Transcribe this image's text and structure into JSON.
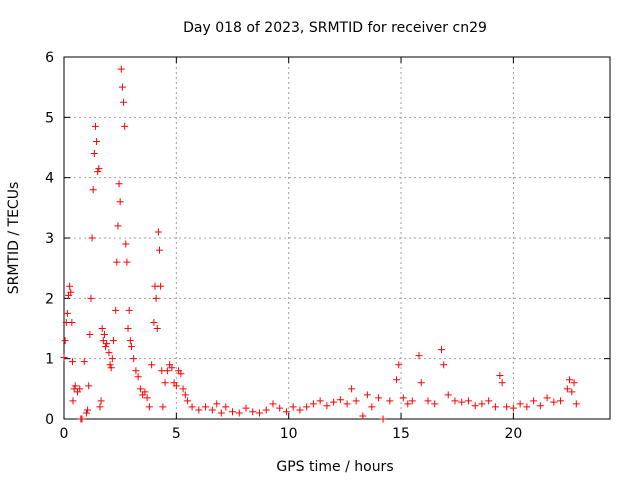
{
  "chart_data": {
    "type": "scatter",
    "title": "Day 018 of 2023, SRMTID for receiver cn29",
    "xlabel": "GPS time / hours",
    "ylabel": "SRMTID / TECUs",
    "xlim": [
      0,
      24.3
    ],
    "ylim": [
      0,
      6
    ],
    "xticks": [
      0,
      5,
      10,
      15,
      20
    ],
    "xtick_labels": [
      "0",
      "5",
      "10",
      "15",
      "20"
    ],
    "yticks": [
      0,
      1,
      2,
      3,
      4,
      5,
      6
    ],
    "ytick_labels": [
      "0",
      "1",
      "2",
      "3",
      "4",
      "5",
      "6"
    ],
    "grid": true,
    "marker": "+",
    "marker_color": "#ff0000",
    "series": [
      {
        "name": "SRMTID",
        "points": [
          [
            0.0,
            1.02
          ],
          [
            0.05,
            1.3
          ],
          [
            0.1,
            1.6
          ],
          [
            0.15,
            1.75
          ],
          [
            0.2,
            2.05
          ],
          [
            0.25,
            2.2
          ],
          [
            0.3,
            2.1
          ],
          [
            0.35,
            1.6
          ],
          [
            0.38,
            0.95
          ],
          [
            0.4,
            0.3
          ],
          [
            0.45,
            0.5
          ],
          [
            0.5,
            0.55
          ],
          [
            0.6,
            0.45
          ],
          [
            0.7,
            0.5
          ],
          [
            0.75,
            0.0
          ],
          [
            0.8,
            0.0
          ],
          [
            0.9,
            0.95
          ],
          [
            1.0,
            0.1
          ],
          [
            1.05,
            0.15
          ],
          [
            1.1,
            0.55
          ],
          [
            1.15,
            1.4
          ],
          [
            1.2,
            2.0
          ],
          [
            1.25,
            3.0
          ],
          [
            1.3,
            3.8
          ],
          [
            1.35,
            4.4
          ],
          [
            1.4,
            4.85
          ],
          [
            1.45,
            4.6
          ],
          [
            1.5,
            4.1
          ],
          [
            1.55,
            4.15
          ],
          [
            1.6,
            0.2
          ],
          [
            1.65,
            0.3
          ],
          [
            1.7,
            1.5
          ],
          [
            1.75,
            1.3
          ],
          [
            1.8,
            1.4
          ],
          [
            1.85,
            1.2
          ],
          [
            1.9,
            1.25
          ],
          [
            2.0,
            1.1
          ],
          [
            2.05,
            0.9
          ],
          [
            2.1,
            0.85
          ],
          [
            2.15,
            1.0
          ],
          [
            2.2,
            1.3
          ],
          [
            2.3,
            1.8
          ],
          [
            2.35,
            2.6
          ],
          [
            2.4,
            3.2
          ],
          [
            2.45,
            3.9
          ],
          [
            2.5,
            3.6
          ],
          [
            2.55,
            5.8
          ],
          [
            2.6,
            5.5
          ],
          [
            2.65,
            5.25
          ],
          [
            2.7,
            4.85
          ],
          [
            2.75,
            2.9
          ],
          [
            2.8,
            2.6
          ],
          [
            2.85,
            1.5
          ],
          [
            2.9,
            1.8
          ],
          [
            2.95,
            1.3
          ],
          [
            3.0,
            1.2
          ],
          [
            3.1,
            1.0
          ],
          [
            3.2,
            0.8
          ],
          [
            3.3,
            0.7
          ],
          [
            3.4,
            0.5
          ],
          [
            3.5,
            0.4
          ],
          [
            3.6,
            0.45
          ],
          [
            3.7,
            0.35
          ],
          [
            3.8,
            0.2
          ],
          [
            3.9,
            0.9
          ],
          [
            4.0,
            1.6
          ],
          [
            4.05,
            2.2
          ],
          [
            4.1,
            2.0
          ],
          [
            4.15,
            1.5
          ],
          [
            4.2,
            3.1
          ],
          [
            4.25,
            2.8
          ],
          [
            4.3,
            2.2
          ],
          [
            4.35,
            0.8
          ],
          [
            4.4,
            0.2
          ],
          [
            4.5,
            0.6
          ],
          [
            4.6,
            0.8
          ],
          [
            4.7,
            0.9
          ],
          [
            4.8,
            0.85
          ],
          [
            4.9,
            0.6
          ],
          [
            5.0,
            0.55
          ],
          [
            5.1,
            0.8
          ],
          [
            5.2,
            0.75
          ],
          [
            5.3,
            0.5
          ],
          [
            5.4,
            0.4
          ],
          [
            5.5,
            0.3
          ],
          [
            5.7,
            0.2
          ],
          [
            6.0,
            0.15
          ],
          [
            6.3,
            0.2
          ],
          [
            6.6,
            0.15
          ],
          [
            6.8,
            0.25
          ],
          [
            7.0,
            0.1
          ],
          [
            7.2,
            0.2
          ],
          [
            7.5,
            0.12
          ],
          [
            7.8,
            0.1
          ],
          [
            8.1,
            0.18
          ],
          [
            8.4,
            0.12
          ],
          [
            8.7,
            0.1
          ],
          [
            9.0,
            0.15
          ],
          [
            9.3,
            0.25
          ],
          [
            9.6,
            0.18
          ],
          [
            9.9,
            0.12
          ],
          [
            10.2,
            0.2
          ],
          [
            10.5,
            0.15
          ],
          [
            10.8,
            0.2
          ],
          [
            11.1,
            0.25
          ],
          [
            11.4,
            0.3
          ],
          [
            11.7,
            0.22
          ],
          [
            12.0,
            0.28
          ],
          [
            12.3,
            0.32
          ],
          [
            12.6,
            0.25
          ],
          [
            12.8,
            0.5
          ],
          [
            13.0,
            0.3
          ],
          [
            13.3,
            0.05
          ],
          [
            13.5,
            0.4
          ],
          [
            13.7,
            0.2
          ],
          [
            14.0,
            0.35
          ],
          [
            14.2,
            0.0
          ],
          [
            14.5,
            0.3
          ],
          [
            14.8,
            0.65
          ],
          [
            14.9,
            0.9
          ],
          [
            15.1,
            0.35
          ],
          [
            15.3,
            0.25
          ],
          [
            15.5,
            0.3
          ],
          [
            15.8,
            1.05
          ],
          [
            15.9,
            0.6
          ],
          [
            16.2,
            0.3
          ],
          [
            16.5,
            0.25
          ],
          [
            16.8,
            1.15
          ],
          [
            16.9,
            0.9
          ],
          [
            17.1,
            0.4
          ],
          [
            17.4,
            0.3
          ],
          [
            17.7,
            0.28
          ],
          [
            18.0,
            0.3
          ],
          [
            18.3,
            0.22
          ],
          [
            18.6,
            0.25
          ],
          [
            18.9,
            0.3
          ],
          [
            19.2,
            0.2
          ],
          [
            19.4,
            0.72
          ],
          [
            19.5,
            0.6
          ],
          [
            19.7,
            0.2
          ],
          [
            20.0,
            0.18
          ],
          [
            20.3,
            0.25
          ],
          [
            20.6,
            0.2
          ],
          [
            20.9,
            0.3
          ],
          [
            21.2,
            0.22
          ],
          [
            21.5,
            0.35
          ],
          [
            21.8,
            0.28
          ],
          [
            22.1,
            0.3
          ],
          [
            22.4,
            0.5
          ],
          [
            22.5,
            0.65
          ],
          [
            22.6,
            0.45
          ],
          [
            22.7,
            0.6
          ],
          [
            22.8,
            0.25
          ]
        ]
      }
    ]
  }
}
